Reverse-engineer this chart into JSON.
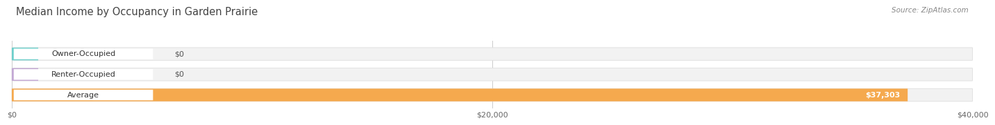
{
  "title": "Median Income by Occupancy in Garden Prairie",
  "source": "Source: ZipAtlas.com",
  "categories": [
    "Owner-Occupied",
    "Renter-Occupied",
    "Average"
  ],
  "values": [
    0,
    0,
    37303
  ],
  "bar_colors": [
    "#6ecfcb",
    "#c3a8d4",
    "#f5a94e"
  ],
  "bar_bg_color": "#f2f2f2",
  "bar_border_color": "#dddddd",
  "label_texts": [
    "$0",
    "$0",
    "$37,303"
  ],
  "xlim": [
    0,
    40000
  ],
  "xticks": [
    0,
    20000,
    40000
  ],
  "xtick_labels": [
    "$0",
    "$20,000",
    "$40,000"
  ],
  "bar_height": 0.62,
  "bg_color": "#ffffff",
  "grid_color": "#cccccc",
  "title_fontsize": 10.5,
  "label_fontsize": 8,
  "tick_fontsize": 8,
  "source_fontsize": 7.5
}
